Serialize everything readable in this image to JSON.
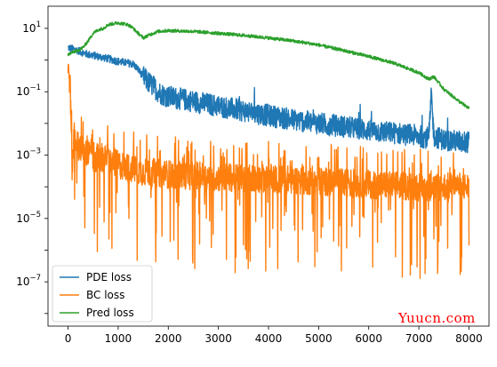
{
  "watermark": "Yuucn.com",
  "chart_data": {
    "type": "line",
    "title": "",
    "xlabel": "",
    "ylabel": "",
    "y_scale": "log",
    "xlim": [
      -400,
      8400
    ],
    "ylim": [
      4e-09,
      50
    ],
    "x_ticks": [
      0,
      1000,
      2000,
      3000,
      4000,
      5000,
      6000,
      7000,
      8000
    ],
    "y_ticks": [
      {
        "value": 10,
        "label": "10¹",
        "base": "10",
        "exp": "1"
      },
      {
        "value": 0.1,
        "label": "10⁻¹",
        "base": "10",
        "exp": "−1"
      },
      {
        "value": 0.001,
        "label": "10⁻³",
        "base": "10",
        "exp": "−3"
      },
      {
        "value": 1e-05,
        "label": "10⁻⁵",
        "base": "10",
        "exp": "−5"
      },
      {
        "value": 1e-07,
        "label": "10⁻⁷",
        "base": "10",
        "exp": "−7"
      }
    ],
    "legend": {
      "position": "lower-left"
    },
    "series": [
      {
        "name": "PDE loss",
        "color": "#1f77b4",
        "x": [
          0,
          100,
          200,
          300,
          400,
          500,
          600,
          700,
          800,
          900,
          1000,
          1100,
          1200,
          1300,
          1400,
          1500,
          1600,
          1700,
          1800,
          1900,
          2000,
          2500,
          3000,
          3500,
          4000,
          4500,
          5000,
          5500,
          6000,
          6500,
          7000,
          7200,
          7250,
          7300,
          7500,
          8000
        ],
        "values": [
          2.5,
          2.2,
          2.0,
          1.7,
          1.5,
          1.4,
          1.3,
          1.2,
          1.1,
          1.0,
          0.9,
          0.85,
          0.8,
          0.75,
          0.5,
          0.3,
          0.2,
          0.15,
          0.1,
          0.08,
          0.07,
          0.05,
          0.035,
          0.025,
          0.018,
          0.013,
          0.01,
          0.008,
          0.006,
          0.005,
          0.004,
          0.0035,
          0.08,
          0.004,
          0.003,
          0.0025
        ]
      },
      {
        "name": "BC loss",
        "color": "#ff7f0e",
        "x": [
          0,
          40,
          80,
          120,
          200,
          400,
          600,
          800,
          1000,
          1200,
          1500,
          2000,
          3000,
          4000,
          5000,
          6000,
          7000,
          8000
        ],
        "values": [
          0.5,
          0.2,
          0.0004,
          0.004,
          0.002,
          0.001,
          0.0008,
          0.0007,
          0.0005,
          0.0004,
          0.0003,
          0.00025,
          0.0002,
          0.00018,
          0.00015,
          0.00012,
          0.0001,
          0.0001
        ],
        "noise_low_decades": 3.0,
        "noise_high_decades": 1.2
      },
      {
        "name": "Pred loss",
        "color": "#2ca02c",
        "x": [
          0,
          100,
          200,
          300,
          400,
          500,
          600,
          700,
          800,
          900,
          1000,
          1100,
          1200,
          1300,
          1400,
          1500,
          1600,
          1700,
          1800,
          2000,
          2500,
          3000,
          3500,
          4000,
          4500,
          5000,
          5500,
          6000,
          6500,
          7000,
          7200,
          7300,
          7500,
          7800,
          8000
        ],
        "values": [
          1.5,
          1.8,
          2.0,
          2.5,
          4.0,
          7.0,
          9.0,
          10.0,
          13.0,
          14.0,
          15.0,
          14.0,
          13.0,
          10.0,
          7.0,
          5.0,
          6.0,
          7.0,
          8.0,
          8.5,
          8.0,
          7.0,
          6.0,
          5.0,
          4.0,
          3.0,
          2.0,
          1.3,
          0.8,
          0.4,
          0.25,
          0.3,
          0.12,
          0.05,
          0.03
        ]
      }
    ]
  }
}
